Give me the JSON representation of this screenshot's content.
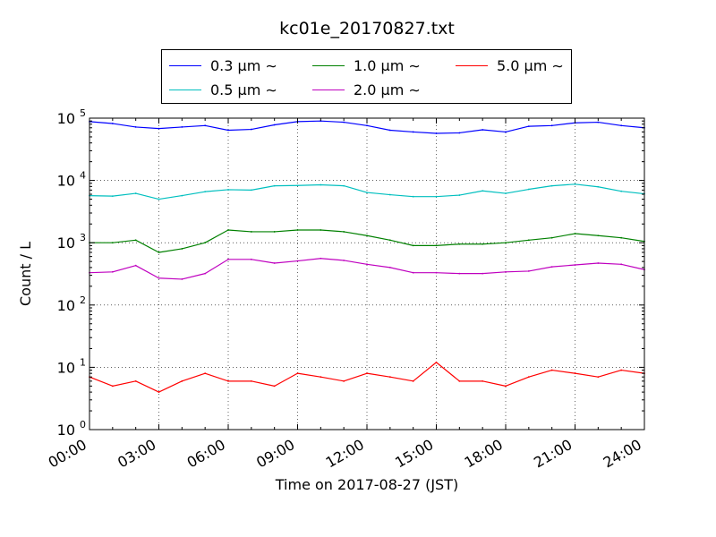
{
  "chart_data": {
    "type": "line",
    "title": "kc01e_20170827.txt",
    "xlabel": "Time on 2017-08-27 (JST)",
    "ylabel": "Count / L",
    "yscale": "log",
    "ylim": [
      1,
      100000
    ],
    "xlim": [
      "00:00",
      "24:00"
    ],
    "x_ticks": [
      "00:00",
      "03:00",
      "06:00",
      "09:00",
      "12:00",
      "15:00",
      "18:00",
      "21:00",
      "24:00"
    ],
    "y_ticks": [
      {
        "base": "10",
        "exp": "0"
      },
      {
        "base": "10",
        "exp": "1"
      },
      {
        "base": "10",
        "exp": "2"
      },
      {
        "base": "10",
        "exp": "3"
      },
      {
        "base": "10",
        "exp": "4"
      },
      {
        "base": "10",
        "exp": "5"
      }
    ],
    "grid": true,
    "legend_position": "top, outside plot",
    "x_hours": [
      0,
      1,
      2,
      3,
      4,
      5,
      6,
      7,
      8,
      9,
      10,
      11,
      12,
      13,
      14,
      15,
      16,
      17,
      18,
      19,
      20,
      21,
      22,
      23,
      24
    ],
    "series": [
      {
        "name": "0.3 μm ∼",
        "color": "#0000ff",
        "values": [
          88000,
          82000,
          72000,
          68000,
          72000,
          76000,
          64000,
          66000,
          78000,
          88000,
          90000,
          86000,
          76000,
          64000,
          60000,
          57000,
          58000,
          65000,
          60000,
          74000,
          76000,
          84000,
          86000,
          76000,
          70000
        ]
      },
      {
        "name": "0.5 μm ∼",
        "color": "#00bfbf",
        "values": [
          5700,
          5600,
          6200,
          5000,
          5700,
          6600,
          7100,
          7000,
          8200,
          8300,
          8500,
          8200,
          6400,
          5900,
          5500,
          5500,
          5800,
          6800,
          6200,
          7200,
          8200,
          8700,
          7900,
          6700,
          6100
        ]
      },
      {
        "name": "1.0 μm ∼",
        "color": "#008000",
        "values": [
          1000,
          1000,
          1100,
          700,
          800,
          1000,
          1600,
          1500,
          1500,
          1600,
          1600,
          1500,
          1300,
          1100,
          900,
          900,
          950,
          950,
          1000,
          1100,
          1200,
          1400,
          1300,
          1200,
          1050
        ]
      },
      {
        "name": "2.0 μm ∼",
        "color": "#bf00bf",
        "values": [
          330,
          340,
          430,
          270,
          260,
          320,
          540,
          540,
          470,
          510,
          560,
          520,
          450,
          400,
          330,
          330,
          320,
          320,
          340,
          350,
          410,
          440,
          470,
          450,
          370
        ]
      },
      {
        "name": "5.0 μm ∼",
        "color": "#ff0000",
        "values": [
          7,
          5,
          6,
          4,
          6,
          8,
          6,
          6,
          5,
          8,
          7,
          6,
          8,
          7,
          6,
          12,
          6,
          6,
          5,
          7,
          9,
          8,
          7,
          9,
          8
        ]
      }
    ]
  }
}
